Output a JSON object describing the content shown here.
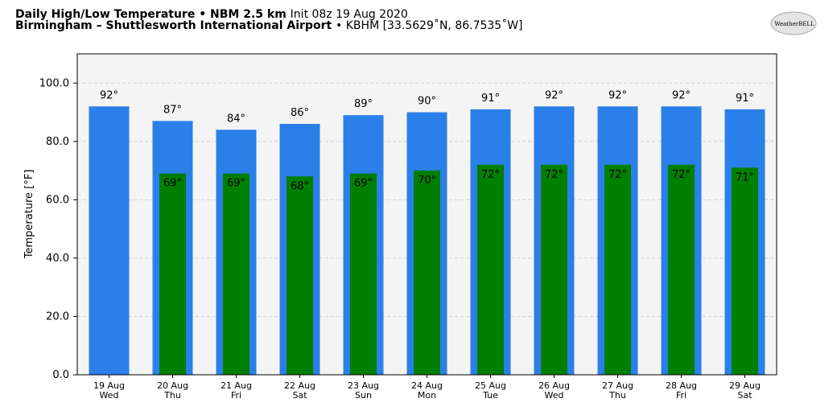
{
  "chart_data": {
    "type": "bar",
    "title": "Daily High/Low Temperature • NBM 2.5 km",
    "title_note": "Init 08z 19 Aug 2020",
    "subtitle": "Birmingham – Shuttlesworth International Airport",
    "subtitle_note": "• KBHM [33.5629˚N, 86.7535˚W]",
    "logo_text": "WeatherBELL",
    "ylabel": "Temperature [°F]",
    "categories": [
      [
        "19 Aug",
        "Wed"
      ],
      [
        "20 Aug",
        "Thu"
      ],
      [
        "21 Aug",
        "Fri"
      ],
      [
        "22 Aug",
        "Sat"
      ],
      [
        "23 Aug",
        "Sun"
      ],
      [
        "24 Aug",
        "Mon"
      ],
      [
        "25 Aug",
        "Tue"
      ],
      [
        "26 Aug",
        "Wed"
      ],
      [
        "27 Aug",
        "Thu"
      ],
      [
        "28 Aug",
        "Fri"
      ],
      [
        "29 Aug",
        "Sat"
      ]
    ],
    "series": [
      {
        "color": "#2b7fe8",
        "values": [
          92,
          87,
          84,
          86,
          89,
          90,
          91,
          92,
          92,
          92,
          91
        ],
        "value_labels": [
          "92°",
          "87°",
          "84°",
          "86°",
          "89°",
          "90°",
          "91°",
          "92°",
          "92°",
          "92°",
          "91°"
        ]
      },
      {
        "color": "#007f00",
        "values": [
          null,
          69,
          69,
          68,
          69,
          70,
          72,
          72,
          72,
          72,
          71
        ],
        "value_labels": [
          null,
          "69°",
          "69°",
          "68°",
          "69°",
          "70°",
          "72°",
          "72°",
          "72°",
          "72°",
          "71°"
        ]
      }
    ],
    "ylim": [
      0,
      110
    ],
    "yticks": [
      {
        "value": 0,
        "label": "0.0"
      },
      {
        "value": 20,
        "label": "20.0"
      },
      {
        "value": 40,
        "label": "40.0"
      },
      {
        "value": 60,
        "label": "60.0"
      },
      {
        "value": 80,
        "label": "80.0"
      },
      {
        "value": 100,
        "label": "100.0"
      }
    ],
    "grid": true
  }
}
